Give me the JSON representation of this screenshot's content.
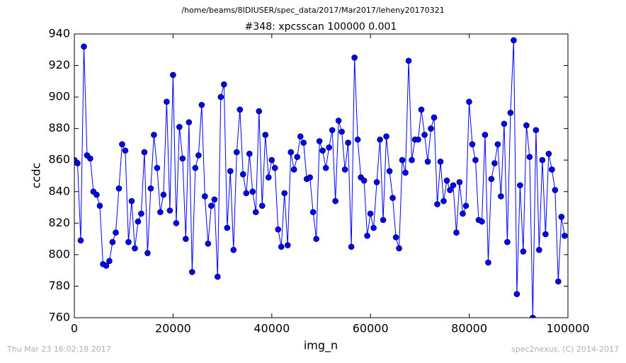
{
  "chart_data": {
    "type": "line",
    "suptitle": "/home/beams/8IDIUSER/spec_data/2017/Mar2017/leheny20170321",
    "title": "#348: xpcsscan 100000 0.001",
    "xlabel": "img_n",
    "ylabel": "ccdc",
    "xlim": [
      0,
      100000
    ],
    "xticks": [
      0,
      20000,
      40000,
      60000,
      80000,
      100000
    ],
    "ylim": [
      760,
      940
    ],
    "yticks": [
      760,
      780,
      800,
      820,
      840,
      860,
      880,
      900,
      920,
      940
    ],
    "grid": false,
    "color": "#0000ff",
    "marker": "circle",
    "x": [
      0,
      645,
      1290,
      1935,
      2580,
      3225,
      3870,
      4515,
      5160,
      5805,
      6450,
      7095,
      7740,
      8385,
      9030,
      9675,
      10320,
      10965,
      11610,
      12255,
      12900,
      13545,
      14190,
      14835,
      15480,
      16125,
      16770,
      17415,
      18060,
      18705,
      19350,
      19995,
      20640,
      21285,
      21930,
      22575,
      23220,
      23865,
      24510,
      25155,
      25800,
      26445,
      27090,
      27735,
      28380,
      29025,
      29670,
      30315,
      30960,
      31605,
      32250,
      32895,
      33540,
      34185,
      34830,
      35475,
      36120,
      36765,
      37410,
      38055,
      38700,
      39345,
      39990,
      40635,
      41280,
      41925,
      42570,
      43215,
      43860,
      44505,
      45150,
      45795,
      46440,
      47085,
      47730,
      48375,
      49020,
      49665,
      50310,
      50955,
      51600,
      52245,
      52890,
      53535,
      54180,
      54825,
      55470,
      56115,
      56760,
      57405,
      58050,
      58695,
      59340,
      59985,
      60630,
      61275,
      61920,
      62565,
      63210,
      63855,
      64500,
      65145,
      65790,
      66435,
      67080,
      67725,
      68370,
      69015,
      69660,
      70305,
      70950,
      71595,
      72240,
      72885,
      73530,
      74175,
      74820,
      75465,
      76110,
      76755,
      77400,
      78045,
      78690,
      79335,
      79980,
      80625,
      81270,
      81915,
      82560,
      83205,
      83850,
      84495,
      85140,
      85785,
      86430,
      87075,
      87720,
      88365,
      89010,
      89655,
      90300,
      90945,
      91590,
      92235,
      92880,
      93525,
      94170,
      94815,
      95460,
      96105,
      96750,
      97395,
      98040,
      98685,
      99330
    ],
    "values": [
      860,
      858,
      809,
      932,
      863,
      861,
      840,
      838,
      831,
      794,
      793,
      796,
      808,
      814,
      842,
      870,
      866,
      808,
      834,
      804,
      821,
      826,
      865,
      801,
      842,
      876,
      855,
      827,
      838,
      897,
      828,
      914,
      820,
      881,
      861,
      810,
      884,
      789,
      855,
      863,
      895,
      837,
      807,
      831,
      835,
      786,
      900,
      908,
      817,
      853,
      803,
      865,
      892,
      851,
      839,
      864,
      840,
      827,
      891,
      831,
      876,
      849,
      860,
      855,
      816,
      805,
      839,
      806,
      865,
      854,
      862,
      875,
      871,
      848,
      849,
      827,
      810,
      872,
      866,
      855,
      868,
      879,
      834,
      885,
      878,
      854,
      871,
      805,
      925,
      873,
      849,
      847,
      812,
      826,
      817,
      846,
      873,
      822,
      875,
      853,
      836,
      811,
      804,
      860,
      852,
      923,
      860,
      873,
      873,
      892,
      876,
      859,
      880,
      887,
      832,
      859,
      834,
      847,
      841,
      844,
      814,
      846,
      826,
      831,
      897,
      870,
      860,
      822,
      821,
      876,
      795,
      848,
      858,
      870,
      837,
      883,
      808,
      890,
      936,
      775,
      844,
      802,
      882,
      862,
      760,
      879,
      803,
      860,
      813,
      864,
      854,
      841,
      783,
      824,
      812
    ]
  },
  "footer": {
    "timestamp": "Thu Mar 23 16:02:18 2017",
    "credit": "spec2nexus, (C) 2014-2017"
  }
}
